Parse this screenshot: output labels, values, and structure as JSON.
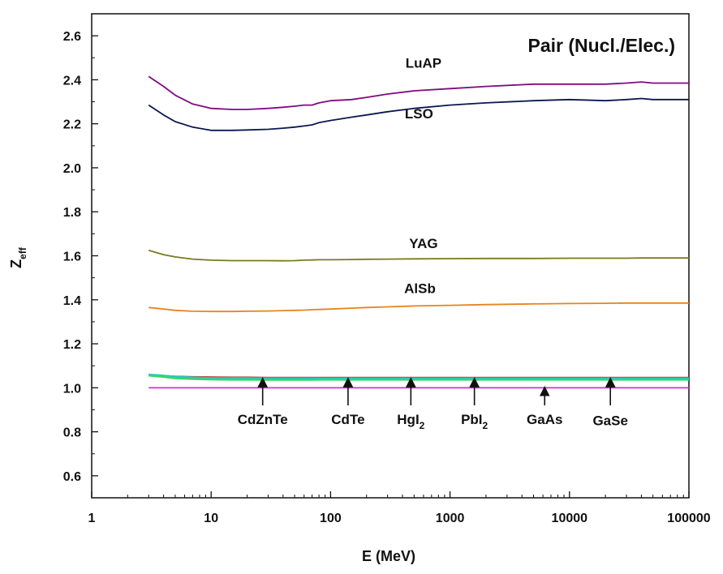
{
  "chart_data": {
    "type": "line",
    "title": "Pair (Nucl./Elec.)",
    "xlabel": "E (MeV)",
    "ylabel": "Z",
    "ylabel_subscript": "eff",
    "xscale": "log",
    "xlim": [
      1,
      100000
    ],
    "ylim": [
      0.5,
      2.7
    ],
    "xticks": [
      {
        "value": 1,
        "label": "1"
      },
      {
        "value": 10,
        "label": "10"
      },
      {
        "value": 100,
        "label": "100"
      },
      {
        "value": 1000,
        "label": "1000"
      },
      {
        "value": 10000,
        "label": "10000"
      },
      {
        "value": 100000,
        "label": "100000"
      }
    ],
    "yticks": [
      {
        "value": 0.6,
        "label": "0.6"
      },
      {
        "value": 0.8,
        "label": "0.8"
      },
      {
        "value": 1.0,
        "label": "1.0"
      },
      {
        "value": 1.2,
        "label": "1.2"
      },
      {
        "value": 1.4,
        "label": "1.4"
      },
      {
        "value": 1.6,
        "label": "1.6"
      },
      {
        "value": 1.8,
        "label": "1.8"
      },
      {
        "value": 2.0,
        "label": "2.0"
      },
      {
        "value": 2.2,
        "label": "2.2"
      },
      {
        "value": 2.4,
        "label": "2.4"
      },
      {
        "value": 2.6,
        "label": "2.6"
      }
    ],
    "x": [
      3,
      4,
      5,
      7,
      10,
      15,
      20,
      30,
      40,
      50,
      60,
      70,
      80,
      100,
      150,
      200,
      300,
      500,
      1000,
      2000,
      5000,
      10000,
      20000,
      30000,
      40000,
      50000,
      100000
    ],
    "series": [
      {
        "name": "LuAP",
        "color": "#800b80",
        "values": [
          2.415,
          2.37,
          2.33,
          2.29,
          2.27,
          2.265,
          2.265,
          2.27,
          2.275,
          2.28,
          2.285,
          2.285,
          2.295,
          2.305,
          2.31,
          2.32,
          2.335,
          2.35,
          2.36,
          2.37,
          2.38,
          2.38,
          2.38,
          2.385,
          2.39,
          2.385,
          2.385
        ]
      },
      {
        "name": "LSO",
        "color": "#0c1750",
        "values": [
          2.285,
          2.24,
          2.21,
          2.185,
          2.17,
          2.17,
          2.172,
          2.175,
          2.18,
          2.185,
          2.19,
          2.195,
          2.205,
          2.215,
          2.23,
          2.24,
          2.255,
          2.27,
          2.285,
          2.295,
          2.305,
          2.31,
          2.305,
          2.31,
          2.315,
          2.31,
          2.31
        ]
      },
      {
        "name": "YAG",
        "color": "#7a7a1e",
        "values": [
          1.625,
          1.605,
          1.595,
          1.585,
          1.58,
          1.578,
          1.578,
          1.578,
          1.577,
          1.578,
          1.58,
          1.581,
          1.582,
          1.582,
          1.583,
          1.584,
          1.585,
          1.586,
          1.587,
          1.588,
          1.588,
          1.589,
          1.589,
          1.589,
          1.59,
          1.59,
          1.59
        ]
      },
      {
        "name": "AlSb",
        "color": "#e6841e",
        "values": [
          1.365,
          1.358,
          1.352,
          1.348,
          1.347,
          1.347,
          1.348,
          1.349,
          1.351,
          1.352,
          1.353,
          1.355,
          1.356,
          1.358,
          1.362,
          1.365,
          1.368,
          1.372,
          1.375,
          1.378,
          1.381,
          1.383,
          1.384,
          1.385,
          1.385,
          1.385,
          1.385
        ]
      },
      {
        "name": "CdZnTe",
        "color": "#c23a3a",
        "values": [
          1.058,
          1.055,
          1.052,
          1.05,
          1.049,
          1.048,
          1.048,
          1.047,
          1.047,
          1.047,
          1.047,
          1.047,
          1.047,
          1.047,
          1.047,
          1.047,
          1.047,
          1.047,
          1.047,
          1.047,
          1.047,
          1.047,
          1.047,
          1.047,
          1.047,
          1.047,
          1.047
        ]
      },
      {
        "name": "CdTe",
        "color": "#4a9a3a",
        "values": [
          1.057,
          1.053,
          1.048,
          1.045,
          1.043,
          1.042,
          1.042,
          1.041,
          1.041,
          1.041,
          1.041,
          1.041,
          1.041,
          1.041,
          1.041,
          1.041,
          1.041,
          1.041,
          1.041,
          1.041,
          1.041,
          1.041,
          1.041,
          1.041,
          1.041,
          1.041,
          1.041
        ]
      },
      {
        "name": "HgI2",
        "color": "#1f5fa8",
        "values": [
          1.055,
          1.05,
          1.045,
          1.042,
          1.04,
          1.039,
          1.039,
          1.038,
          1.038,
          1.038,
          1.038,
          1.038,
          1.038,
          1.038,
          1.038,
          1.038,
          1.038,
          1.038,
          1.038,
          1.038,
          1.038,
          1.038,
          1.038,
          1.038,
          1.038,
          1.038,
          1.038
        ]
      },
      {
        "name": "PbI2",
        "color": "#20c8c8",
        "values": [
          1.06,
          1.055,
          1.05,
          1.046,
          1.044,
          1.043,
          1.043,
          1.042,
          1.042,
          1.042,
          1.042,
          1.042,
          1.042,
          1.042,
          1.042,
          1.042,
          1.042,
          1.042,
          1.042,
          1.042,
          1.042,
          1.042,
          1.042,
          1.042,
          1.042,
          1.042,
          1.042
        ]
      },
      {
        "name": "GaAs",
        "color": "#cc44cc",
        "values": [
          1.0,
          1.0,
          1.0,
          1.0,
          1.0,
          1.0,
          1.0,
          1.0,
          1.0,
          1.0,
          1.0,
          1.0,
          1.0,
          1.0,
          1.0,
          1.0,
          1.0,
          1.0,
          1.0,
          1.0,
          1.0,
          1.0,
          1.0,
          1.0,
          1.0,
          1.0,
          1.0
        ]
      },
      {
        "name": "GaSe",
        "color": "#3ad66a",
        "values": [
          1.056,
          1.05,
          1.044,
          1.04,
          1.038,
          1.037,
          1.037,
          1.036,
          1.036,
          1.036,
          1.036,
          1.036,
          1.037,
          1.037,
          1.037,
          1.037,
          1.037,
          1.037,
          1.037,
          1.037,
          1.037,
          1.037,
          1.037,
          1.037,
          1.037,
          1.037,
          1.037
        ]
      }
    ],
    "line_labels": [
      {
        "text": "LuAP",
        "x": 600,
        "y": 2.455
      },
      {
        "text": "LSO",
        "x": 550,
        "y": 2.225
      },
      {
        "text": "YAG",
        "x": 600,
        "y": 1.635
      },
      {
        "text": "AlSb",
        "x": 560,
        "y": 1.43
      }
    ],
    "annotations": [
      {
        "text": "CdZnTe",
        "sub": "",
        "arrow_x": 27,
        "arrow_from": 0.92,
        "arrow_to": 1.04,
        "label_x": 27,
        "label_y": 0.835
      },
      {
        "text": "CdTe",
        "sub": "",
        "arrow_x": 140,
        "arrow_from": 0.92,
        "arrow_to": 1.04,
        "label_x": 140,
        "label_y": 0.835
      },
      {
        "text": "HgI",
        "sub": "2",
        "arrow_x": 470,
        "arrow_from": 0.92,
        "arrow_to": 1.04,
        "label_x": 470,
        "label_y": 0.835
      },
      {
        "text": "PbI",
        "sub": "2",
        "arrow_x": 1600,
        "arrow_from": 0.92,
        "arrow_to": 1.04,
        "label_x": 1600,
        "label_y": 0.835
      },
      {
        "text": "GaAs",
        "sub": "",
        "arrow_x": 6200,
        "arrow_from": 0.92,
        "arrow_to": 1.0,
        "label_x": 6200,
        "label_y": 0.835
      },
      {
        "text": "GaSe",
        "sub": "",
        "arrow_x": 22000,
        "arrow_from": 0.92,
        "arrow_to": 1.04,
        "label_x": 22000,
        "label_y": 0.83
      }
    ]
  }
}
